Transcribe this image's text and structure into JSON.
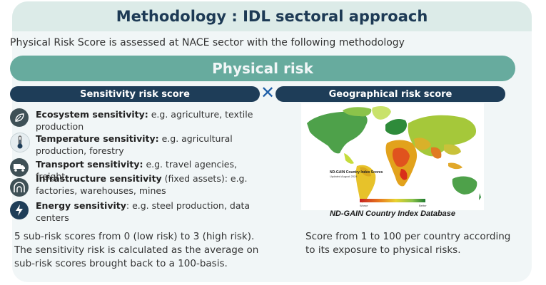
{
  "header": {
    "title": "Methodology : IDL sectoral approach"
  },
  "intro": "Physical Risk Score is assessed at NACE sector with the following methodology",
  "banner": "Physical risk",
  "left_pill": "Sensitivity risk score",
  "right_pill": "Geographical risk score",
  "cross_symbol": "✕",
  "sensitivities": [
    {
      "icon": "leaf-icon",
      "bold": "Ecosystem sensitivity:",
      "rest": " e.g. agriculture, textile production"
    },
    {
      "icon": "thermometer-icon",
      "bold": "Temperature sensitivity:",
      "rest": " e.g. agricultural production, forestry"
    },
    {
      "icon": "truck-icon",
      "bold": "Transport sensitivity:",
      "rest": " e.g. travel agencies, freight"
    },
    {
      "icon": "tunnel-icon",
      "bold": "Infrastructure sensitivity",
      "rest": " (fixed assets): e.g. factories, warehouses, mines"
    },
    {
      "icon": "lightning-icon",
      "bold": "Energy sensitivity",
      "rest": ": e.g. steel production, data centers"
    }
  ],
  "left_paragraph": "5 sub-risk scores from 0 (low risk) to 3 (high risk). The sensitivity risk is calculated as the average on sub-risk scores brought back to a 100-basis.",
  "map": {
    "legend_title": "ND-GAIN Country Index Scores",
    "legend_sub": "Updated August 2024",
    "legend_low": "Worse",
    "legend_high": "Better",
    "caption": "ND-GAIN Country Index Database"
  },
  "right_paragraph": "Score from 1 to 100 per country according to its exposure to physical risks.",
  "colors": {
    "header_bg": "#dcebe8",
    "banner": "#67ab9e",
    "pill": "#1e3d58",
    "cross": "#1f5fa8",
    "icon_bg": "#3e5056"
  }
}
